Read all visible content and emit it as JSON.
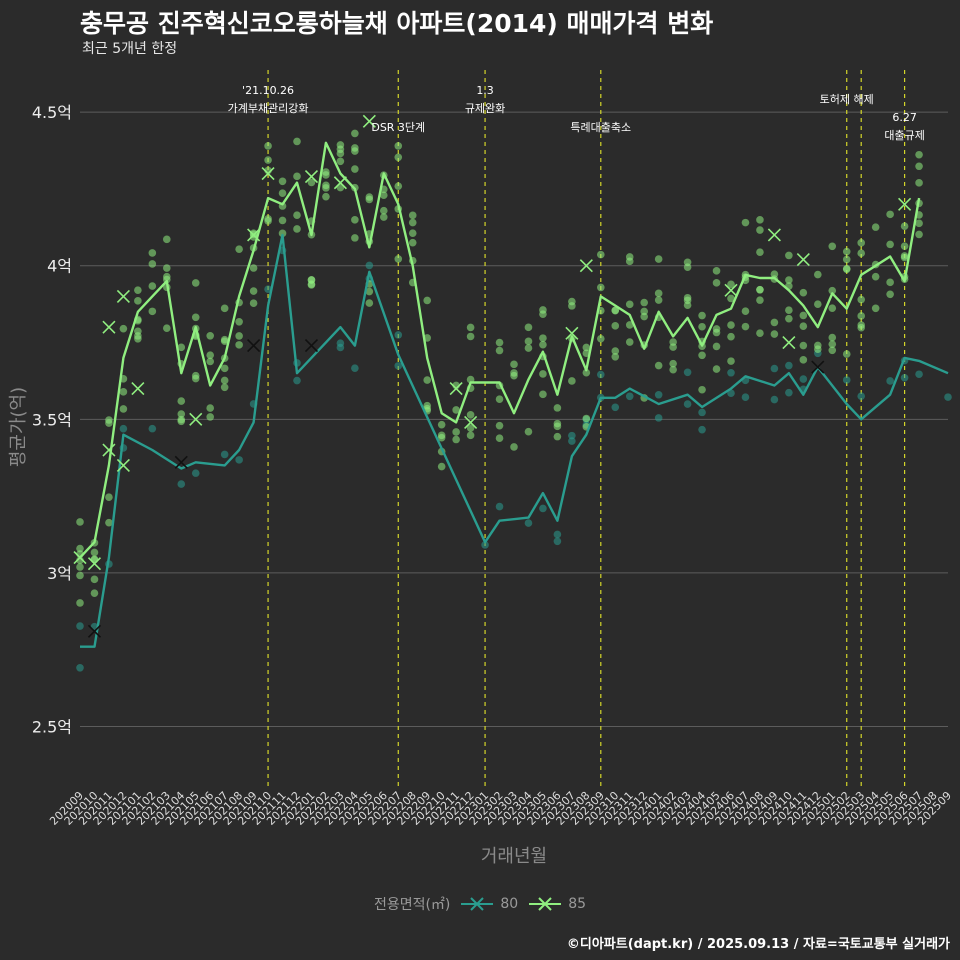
{
  "title": "충무공 진주혁신코오롱하늘채 아파트(2014) 매매가격 변화",
  "subtitle": "최근 5개년 한정",
  "caption": "©디아파트(dapt.kr) / 2025.09.13 / 자료=국토교통부 실거래가",
  "legend": {
    "title": "전용면적(㎡)",
    "items": [
      {
        "label": "80",
        "color": "#2a9d8f",
        "icon": "line-x-icon"
      },
      {
        "label": "85",
        "color": "#90ee80",
        "icon": "line-x-icon"
      }
    ]
  },
  "chart_data": {
    "type": "line",
    "xlabel": "거래년월",
    "ylabel": "평균가(억)",
    "ylim": [
      2.3,
      4.65
    ],
    "yticks": [
      {
        "value": 2.5,
        "label": "2.5억"
      },
      {
        "value": 3,
        "label": "3억"
      },
      {
        "value": 3.5,
        "label": "3.5억"
      },
      {
        "value": 4,
        "label": "4억"
      },
      {
        "value": 4.5,
        "label": "4.5억"
      }
    ],
    "grid": true,
    "legend_position": "bottom",
    "categories": [
      "202009",
      "202010",
      "202011",
      "202012",
      "202101",
      "202102",
      "202103",
      "202104",
      "202105",
      "202106",
      "202107",
      "202108",
      "202109",
      "202110",
      "202111",
      "202112",
      "202201",
      "202202",
      "202203",
      "202204",
      "202205",
      "202206",
      "202207",
      "202208",
      "202209",
      "202210",
      "202211",
      "202212",
      "202301",
      "202302",
      "202303",
      "202304",
      "202305",
      "202306",
      "202307",
      "202308",
      "202309",
      "202310",
      "202311",
      "202312",
      "202401",
      "202402",
      "202403",
      "202404",
      "202405",
      "202406",
      "202407",
      "202408",
      "202409",
      "202410",
      "202411",
      "202412",
      "202501",
      "202502",
      "202503",
      "202504",
      "202505",
      "202506",
      "202507",
      "202508",
      "202509"
    ],
    "series": [
      {
        "name": "80",
        "color": "#2a9d8f",
        "points": [
          [
            "202009",
            2.76
          ],
          [
            "202010",
            2.76
          ],
          [
            "202011",
            3.05
          ],
          [
            "202012",
            3.45
          ],
          [
            "202102",
            3.4
          ],
          [
            "202104",
            3.34
          ],
          [
            "202105",
            3.36
          ],
          [
            "202107",
            3.35
          ],
          [
            "202108",
            3.4
          ],
          [
            "202109",
            3.49
          ],
          [
            "202110",
            3.87
          ],
          [
            "202111",
            4.1
          ],
          [
            "202112",
            3.65
          ],
          [
            "202203",
            3.8
          ],
          [
            "202204",
            3.74
          ],
          [
            "202205",
            3.98
          ],
          [
            "202207",
            3.71
          ],
          [
            "202301",
            3.1
          ],
          [
            "202302",
            3.17
          ],
          [
            "202304",
            3.18
          ],
          [
            "202305",
            3.26
          ],
          [
            "202306",
            3.17
          ],
          [
            "202307",
            3.38
          ],
          [
            "202308",
            3.45
          ],
          [
            "202309",
            3.57
          ],
          [
            "202310",
            3.57
          ],
          [
            "202311",
            3.6
          ],
          [
            "202401",
            3.55
          ],
          [
            "202403",
            3.58
          ],
          [
            "202404",
            3.54
          ],
          [
            "202406",
            3.6
          ],
          [
            "202407",
            3.64
          ],
          [
            "202409",
            3.61
          ],
          [
            "202410",
            3.65
          ],
          [
            "202411",
            3.58
          ],
          [
            "202412",
            3.67
          ],
          [
            "202502",
            3.55
          ],
          [
            "202503",
            3.5
          ],
          [
            "202505",
            3.58
          ],
          [
            "202506",
            3.7
          ],
          [
            "202507",
            3.69
          ],
          [
            "202509",
            3.65
          ]
        ]
      },
      {
        "name": "85",
        "color": "#90ee80",
        "points": [
          [
            "202009",
            3.05
          ],
          [
            "202010",
            3.1
          ],
          [
            "202011",
            3.35
          ],
          [
            "202012",
            3.7
          ],
          [
            "202101",
            3.85
          ],
          [
            "202102",
            3.9
          ],
          [
            "202103",
            3.95
          ],
          [
            "202104",
            3.65
          ],
          [
            "202105",
            3.8
          ],
          [
            "202106",
            3.61
          ],
          [
            "202107",
            3.7
          ],
          [
            "202108",
            3.9
          ],
          [
            "202109",
            4.05
          ],
          [
            "202110",
            4.22
          ],
          [
            "202111",
            4.2
          ],
          [
            "202112",
            4.27
          ],
          [
            "202201",
            4.1
          ],
          [
            "202202",
            4.4
          ],
          [
            "202203",
            4.3
          ],
          [
            "202204",
            4.25
          ],
          [
            "202205",
            4.06
          ],
          [
            "202206",
            4.3
          ],
          [
            "202207",
            4.2
          ],
          [
            "202208",
            4.0
          ],
          [
            "202209",
            3.7
          ],
          [
            "202210",
            3.52
          ],
          [
            "202211",
            3.49
          ],
          [
            "202212",
            3.62
          ],
          [
            "202302",
            3.62
          ],
          [
            "202303",
            3.52
          ],
          [
            "202304",
            3.63
          ],
          [
            "202305",
            3.72
          ],
          [
            "202306",
            3.58
          ],
          [
            "202307",
            3.77
          ],
          [
            "202308",
            3.66
          ],
          [
            "202309",
            3.9
          ],
          [
            "202310",
            3.87
          ],
          [
            "202311",
            3.84
          ],
          [
            "202312",
            3.73
          ],
          [
            "202401",
            3.85
          ],
          [
            "202402",
            3.77
          ],
          [
            "202403",
            3.83
          ],
          [
            "202404",
            3.74
          ],
          [
            "202405",
            3.84
          ],
          [
            "202406",
            3.86
          ],
          [
            "202407",
            3.97
          ],
          [
            "202408",
            3.96
          ],
          [
            "202409",
            3.96
          ],
          [
            "202410",
            3.92
          ],
          [
            "202411",
            3.87
          ],
          [
            "202412",
            3.8
          ],
          [
            "202501",
            3.91
          ],
          [
            "202502",
            3.86
          ],
          [
            "202503",
            3.97
          ],
          [
            "202504",
            4.0
          ],
          [
            "202505",
            4.03
          ],
          [
            "202506",
            3.95
          ],
          [
            "202507",
            4.22
          ]
        ]
      }
    ],
    "transactions": [
      {
        "series": "85",
        "x": "202009",
        "y": 3.05,
        "marker": "x"
      },
      {
        "series": "85",
        "x": "202010",
        "y": 3.03,
        "marker": "x"
      },
      {
        "series": "85",
        "x": "202011",
        "y": 3.8,
        "marker": "x"
      },
      {
        "series": "85",
        "x": "202011",
        "y": 3.4,
        "marker": "x"
      },
      {
        "series": "85",
        "x": "202012",
        "y": 3.9,
        "marker": "x"
      },
      {
        "series": "85",
        "x": "202012",
        "y": 3.35,
        "marker": "x"
      },
      {
        "series": "85",
        "x": "202101",
        "y": 3.6,
        "marker": "x"
      },
      {
        "series": "85",
        "x": "202105",
        "y": 3.5,
        "marker": "x"
      },
      {
        "series": "85",
        "x": "202109",
        "y": 4.1,
        "marker": "x"
      },
      {
        "series": "85",
        "x": "202110",
        "y": 4.3,
        "marker": "x"
      },
      {
        "series": "85",
        "x": "202201",
        "y": 4.29,
        "marker": "x"
      },
      {
        "series": "85",
        "x": "202203",
        "y": 4.27,
        "marker": "x"
      },
      {
        "series": "85",
        "x": "202205",
        "y": 4.47,
        "marker": "x"
      },
      {
        "series": "85",
        "x": "202211",
        "y": 3.6,
        "marker": "x"
      },
      {
        "series": "85",
        "x": "202212",
        "y": 3.49,
        "marker": "x"
      },
      {
        "series": "85",
        "x": "202307",
        "y": 3.78,
        "marker": "x"
      },
      {
        "series": "85",
        "x": "202308",
        "y": 4.0,
        "marker": "x"
      },
      {
        "series": "85",
        "x": "202406",
        "y": 3.92,
        "marker": "x"
      },
      {
        "series": "85",
        "x": "202409",
        "y": 4.1,
        "marker": "x"
      },
      {
        "series": "85",
        "x": "202410",
        "y": 3.75,
        "marker": "x"
      },
      {
        "series": "85",
        "x": "202411",
        "y": 4.02,
        "marker": "x"
      },
      {
        "series": "85",
        "x": "202506",
        "y": 4.2,
        "marker": "x"
      },
      {
        "series": "80",
        "x": "202010",
        "y": 2.81,
        "marker": "x"
      },
      {
        "series": "80",
        "x": "202104",
        "y": 3.36,
        "marker": "x"
      },
      {
        "series": "80",
        "x": "202109",
        "y": 3.74,
        "marker": "x"
      },
      {
        "series": "80",
        "x": "202201",
        "y": 3.74,
        "marker": "x"
      },
      {
        "series": "80",
        "x": "202412",
        "y": 3.67,
        "marker": "x"
      }
    ],
    "annotations": [
      {
        "x": "202110",
        "label_lines": [
          "'21.10.26",
          "가계부채관리강화"
        ]
      },
      {
        "x": "202207",
        "label_lines": [
          "DSR 3단계"
        ]
      },
      {
        "x": "202301",
        "label_lines": [
          "1.3",
          "규제완화"
        ]
      },
      {
        "x": "202309",
        "label_lines": [
          "특례대출축소"
        ]
      },
      {
        "x": "202502",
        "label_lines": [
          "토허제 해제"
        ]
      },
      {
        "x": "202503",
        "label_lines": []
      },
      {
        "x": "202506",
        "label_lines": [
          "6.27",
          "대출규제"
        ]
      }
    ]
  }
}
